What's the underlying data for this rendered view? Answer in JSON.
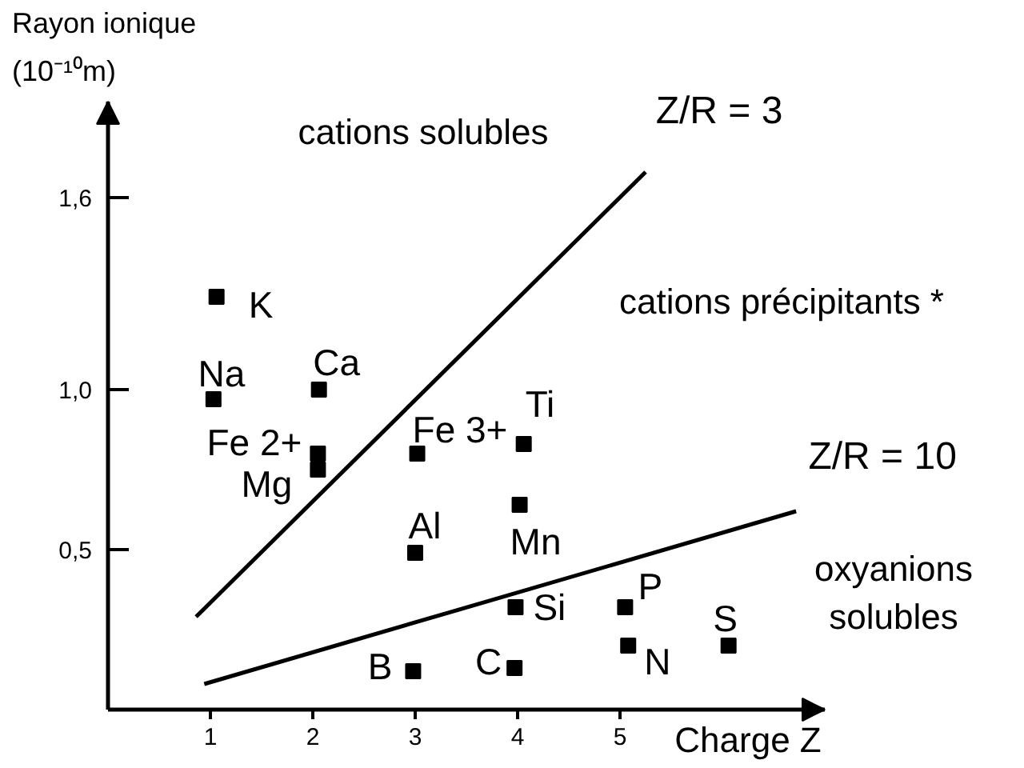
{
  "chart_data": {
    "type": "scatter",
    "xlabel": "Charge Z",
    "ylabel": "Rayon ionique (10⁻¹⁰m)",
    "xlim": [
      0,
      7
    ],
    "ylim": [
      0,
      1.9
    ],
    "xticks": [
      1,
      2,
      3,
      4,
      5
    ],
    "yticks": [
      {
        "value": 0.5,
        "label": "0,5"
      },
      {
        "value": 1.0,
        "label": "1,0"
      },
      {
        "value": 1.6,
        "label": "1,6"
      }
    ],
    "grid": false,
    "series": [
      {
        "color": "#000000",
        "marker": "square",
        "x": [
          1.06,
          1.03,
          2.06,
          2.05,
          2.05,
          3.02,
          4.06,
          3.0,
          4.02,
          3.98,
          5.05,
          5.08,
          6.06,
          2.98,
          3.97
        ],
        "values": [
          1.29,
          0.97,
          1.0,
          0.8,
          0.75,
          0.8,
          0.83,
          0.49,
          0.64,
          0.32,
          0.32,
          0.2,
          0.2,
          0.12,
          0.13
        ]
      },
      {
        "type": "line",
        "name": "Z/R = 3",
        "color": "#000000",
        "x": [
          0.86,
          5.25
        ],
        "values": [
          0.29,
          1.68
        ]
      },
      {
        "type": "line",
        "name": "Z/R = 10",
        "color": "#000000",
        "x": [
          0.94,
          6.72
        ],
        "values": [
          0.08,
          0.62
        ]
      }
    ],
    "annotations": [
      "cations solubles",
      "cations précipitants *",
      "oxyanions solubles",
      {
        "text": "K",
        "x": 1.06,
        "y": 1.29
      },
      {
        "text": "Na",
        "x": 1.03,
        "y": 0.97
      },
      {
        "text": "Ca",
        "x": 2.06,
        "y": 1.0
      },
      {
        "text": "Fe 2+",
        "x": 2.05,
        "y": 0.8
      },
      {
        "text": "Mg",
        "x": 2.05,
        "y": 0.75
      },
      {
        "text": "Fe 3+",
        "x": 3.02,
        "y": 0.8
      },
      {
        "text": "Ti",
        "x": 4.06,
        "y": 0.83
      },
      {
        "text": "Al",
        "x": 3.0,
        "y": 0.49
      },
      {
        "text": "Mn",
        "x": 4.02,
        "y": 0.64
      },
      {
        "text": "Si",
        "x": 3.98,
        "y": 0.32
      },
      {
        "text": "P",
        "x": 5.05,
        "y": 0.32
      },
      {
        "text": "N",
        "x": 5.08,
        "y": 0.2
      },
      {
        "text": "S",
        "x": 6.06,
        "y": 0.2
      },
      {
        "text": "B",
        "x": 2.98,
        "y": 0.12
      },
      {
        "text": "C",
        "x": 3.97,
        "y": 0.13
      }
    ]
  }
}
